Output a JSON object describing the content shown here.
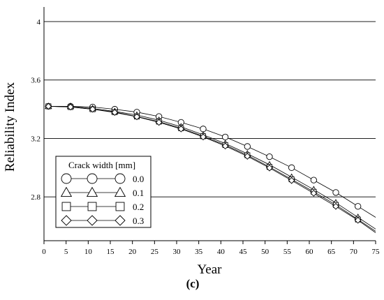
{
  "chart_data": {
    "type": "line",
    "xlabel": "Year",
    "ylabel": "Reliability Index",
    "xlim": [
      0,
      75
    ],
    "ylim": [
      2.5,
      4.1
    ],
    "x_ticks": [
      0,
      5,
      10,
      15,
      20,
      25,
      30,
      35,
      40,
      45,
      50,
      55,
      60,
      65,
      70,
      75
    ],
    "y_ticks": [
      2.8,
      3.2,
      3.6,
      4
    ],
    "y_tick_labels": [
      "2.8",
      "3.2",
      "3.6",
      "4"
    ],
    "grid": "horizontal",
    "legend": {
      "title": "Crack width [mm]",
      "position": "bottom-left"
    },
    "series": [
      {
        "name": "0.0",
        "marker": "circle",
        "x": [
          1,
          6,
          11,
          16,
          21,
          26,
          31,
          36,
          41,
          46,
          51,
          56,
          61,
          66,
          71
        ],
        "y": [
          3.42,
          3.42,
          3.415,
          3.4,
          3.38,
          3.35,
          3.31,
          3.265,
          3.21,
          3.145,
          3.075,
          3.0,
          2.915,
          2.83,
          2.735
        ],
        "end": [
          75,
          2.66
        ]
      },
      {
        "name": "0.1",
        "marker": "triangle",
        "x": [
          1,
          6,
          11,
          16,
          21,
          26,
          31,
          36,
          41,
          46,
          51,
          56,
          61,
          66,
          71
        ],
        "y": [
          3.42,
          3.42,
          3.405,
          3.385,
          3.36,
          3.325,
          3.28,
          3.225,
          3.165,
          3.095,
          3.02,
          2.935,
          2.85,
          2.76,
          2.66
        ],
        "end": [
          75,
          2.58
        ]
      },
      {
        "name": "0.2",
        "marker": "square",
        "x": [
          1,
          6,
          11,
          16,
          21,
          26,
          31,
          36,
          41,
          46,
          51,
          56,
          61,
          66,
          71
        ],
        "y": [
          3.42,
          3.415,
          3.4,
          3.38,
          3.35,
          3.315,
          3.27,
          3.215,
          3.155,
          3.085,
          3.005,
          2.92,
          2.835,
          2.745,
          2.645
        ],
        "end": [
          75,
          2.565
        ]
      },
      {
        "name": "0.3",
        "marker": "diamond",
        "x": [
          1,
          6,
          11,
          16,
          21,
          26,
          31,
          36,
          41,
          46,
          51,
          56,
          61,
          66,
          71
        ],
        "y": [
          3.42,
          3.415,
          3.4,
          3.378,
          3.348,
          3.31,
          3.265,
          3.21,
          3.148,
          3.078,
          2.998,
          2.912,
          2.825,
          2.735,
          2.64
        ],
        "end": [
          75,
          2.555
        ]
      }
    ],
    "panel_label": "(c)"
  }
}
